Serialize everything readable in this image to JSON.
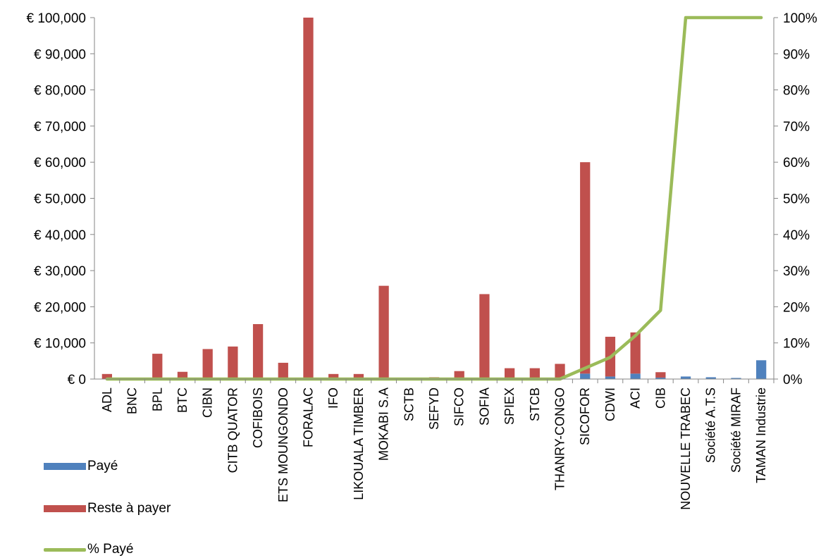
{
  "chart_data": {
    "type": "bar",
    "stacked": true,
    "categories": [
      "ADL",
      "BNC",
      "BPL",
      "BTC",
      "CIBN",
      "CITB QUATOR",
      "COFIBOIS",
      "ETS MOUNGONDO",
      "FORALAC",
      "IFO",
      "LIKOUALA TIMBER",
      "MOKABI S.A",
      "SCTB",
      "SEFYD",
      "SIFCO",
      "SOFIA",
      "SPIEX",
      "STCB",
      "THANRY-CONGO",
      "SICOFOR",
      "CDWI",
      "ACI",
      "CIB",
      "NOUVELLE TRABEC",
      "Société A.T.S",
      "Société MIRAF",
      "TAMAN Industrie"
    ],
    "series": [
      {
        "name": "Payé",
        "type": "bar",
        "axis": "left",
        "color": "#4f81bd",
        "values": [
          0,
          0,
          0,
          0,
          0,
          0,
          0,
          0,
          0,
          0,
          0,
          0,
          0,
          0,
          0,
          0,
          0,
          0,
          0,
          1500,
          700,
          1500,
          400,
          700,
          500,
          300,
          5200
        ]
      },
      {
        "name": "Reste à payer",
        "type": "bar",
        "axis": "left",
        "color": "#c0504d",
        "values": [
          1400,
          0,
          7000,
          2000,
          8300,
          9000,
          15200,
          4500,
          100000,
          1400,
          1400,
          25800,
          300,
          500,
          2200,
          23500,
          3000,
          3000,
          4200,
          58500,
          11000,
          11400,
          1500,
          0,
          0,
          0,
          0
        ]
      },
      {
        "name": "% Payé",
        "type": "line",
        "axis": "right",
        "color": "#9bbb59",
        "values": [
          0,
          0,
          0,
          0,
          0,
          0,
          0,
          0,
          0,
          0,
          0,
          0,
          0,
          0,
          0,
          0,
          0,
          0,
          0,
          3,
          6,
          12,
          19,
          100,
          100,
          100,
          100
        ]
      }
    ],
    "y_left": {
      "min": 0,
      "max": 100000,
      "step": 10000,
      "tick_labels": [
        "€ 0",
        "€ 10,000",
        "€ 20,000",
        "€ 30,000",
        "€ 40,000",
        "€ 50,000",
        "€ 60,000",
        "€ 70,000",
        "€ 80,000",
        "€ 90,000",
        "€ 100,000"
      ]
    },
    "y_right": {
      "min": 0,
      "max": 100,
      "step": 10,
      "tick_labels": [
        "0%",
        "10%",
        "20%",
        "30%",
        "40%",
        "50%",
        "60%",
        "70%",
        "80%",
        "90%",
        "100%"
      ]
    },
    "grid": false,
    "legend_position": "bottom-left",
    "legend": [
      "Payé",
      "Reste à payer",
      "% Payé"
    ]
  }
}
